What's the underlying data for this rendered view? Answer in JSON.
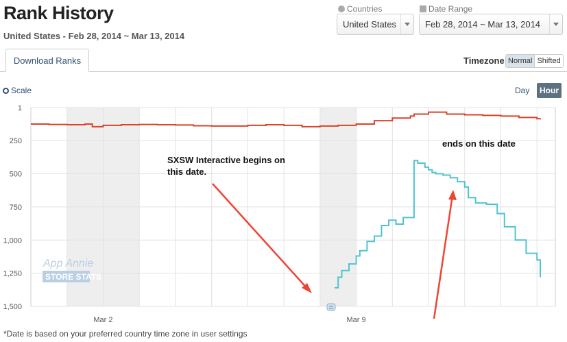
{
  "header": {
    "title": "Rank History",
    "subtitle": "United States - Feb 28, 2014 ~ Mar 13, 2014"
  },
  "filters": {
    "countries": {
      "label": "Countries",
      "value": "United States"
    },
    "date_range": {
      "label": "Date Range",
      "value": "Feb 28, 2014 ~ Mar 13, 2014"
    }
  },
  "tabs": [
    {
      "label": "Download Ranks",
      "active": true
    }
  ],
  "timezone": {
    "label": "Timezone",
    "options": [
      "Normal",
      "Shifted"
    ],
    "selected": "Normal"
  },
  "scale": {
    "label": "Scale"
  },
  "granularity": {
    "options": [
      "Day",
      "Hour"
    ],
    "selected": "Hour"
  },
  "watermark": {
    "line1": "App Annie",
    "line2": "STORE STATS"
  },
  "footnote": "*Date is based on your preferred country time zone in user settings",
  "annotations": [
    {
      "text": "SXSW Interactive begins on this date."
    },
    {
      "text": "ends on this date"
    }
  ],
  "colors": {
    "series_top": "#d9432a",
    "series_bottom": "#4fc4cf",
    "arrow": "#ef4433",
    "shade": "#eeeeee"
  },
  "chart_data": {
    "type": "line",
    "xlabel": "",
    "ylabel": "",
    "y_inverted": true,
    "yticks": [
      {
        "value": 1,
        "label": "1"
      },
      {
        "value": 250,
        "label": "250"
      },
      {
        "value": 500,
        "label": "500"
      },
      {
        "value": 750,
        "label": "750"
      },
      {
        "value": 1000,
        "label": "1,000"
      },
      {
        "value": 1250,
        "label": "1,250"
      },
      {
        "value": 1500,
        "label": "1,500"
      }
    ],
    "ylim": [
      1,
      1500
    ],
    "xlim": [
      0,
      14
    ],
    "xticks": [
      {
        "value": 2,
        "label": "Mar 2"
      },
      {
        "value": 9,
        "label": "Mar 9"
      }
    ],
    "weekend_bands": [
      [
        1,
        3
      ],
      [
        8,
        9
      ]
    ],
    "series": [
      {
        "x": [
          0,
          0.5,
          1.0,
          1.5,
          1.7,
          2,
          2.5,
          3,
          3.5,
          4,
          4.5,
          5,
          5.5,
          6,
          6.5,
          7,
          7.5,
          8,
          8.5,
          9,
          9.5,
          10,
          10.5,
          10.6,
          11,
          11.5,
          12,
          12.5,
          13,
          13.5,
          14,
          14.5
        ],
        "y": [
          125,
          128,
          130,
          125,
          145,
          135,
          130,
          128,
          130,
          132,
          138,
          140,
          140,
          135,
          130,
          135,
          145,
          140,
          135,
          125,
          100,
          80,
          65,
          50,
          35,
          50,
          55,
          60,
          65,
          75,
          85,
          80
        ]
      },
      {
        "x": [
          8.4,
          8.5,
          8.6,
          8.8,
          9.0,
          9.1,
          9.3,
          9.5,
          9.7,
          9.9,
          10.1,
          10.3,
          10.6,
          10.7,
          10.9,
          11.0,
          11.1,
          11.2,
          11.4,
          11.6,
          11.8,
          12.0,
          12.1,
          12.3,
          12.6,
          12.9,
          13.1,
          13.4,
          13.7,
          14.0,
          14.2,
          14.5
        ],
        "y": [
          1360,
          1280,
          1230,
          1180,
          1120,
          1080,
          1010,
          970,
          890,
          850,
          880,
          830,
          400,
          420,
          450,
          470,
          490,
          500,
          510,
          530,
          560,
          600,
          680,
          720,
          730,
          800,
          900,
          1000,
          1100,
          1150,
          1180,
          1280
        ]
      }
    ]
  }
}
